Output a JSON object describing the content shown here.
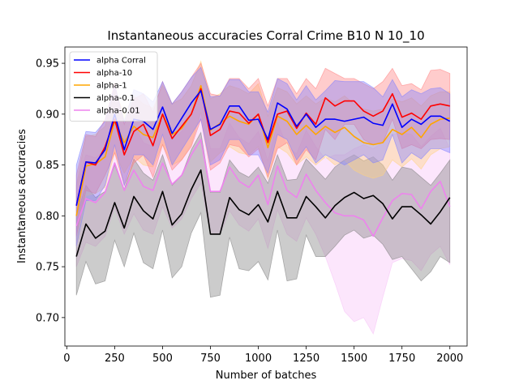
{
  "chart_data": {
    "type": "line",
    "title": "Instantaneous accuracies Corral Crime B10 N 10_10",
    "xlabel": "Number of batches",
    "ylabel": "Instantaneous accuracies",
    "xlim": [
      -10,
      2090
    ],
    "ylim": [
      0.672,
      0.966
    ],
    "xticks": [
      0,
      250,
      500,
      750,
      1000,
      1250,
      1500,
      1750,
      2000
    ],
    "yticks": [
      0.7,
      0.75,
      0.8,
      0.85,
      0.9,
      0.95
    ],
    "grid": false,
    "legend_position": "upper-left",
    "x": [
      50,
      100,
      150,
      200,
      250,
      300,
      350,
      400,
      450,
      500,
      550,
      600,
      650,
      700,
      750,
      800,
      850,
      900,
      950,
      1000,
      1050,
      1100,
      1150,
      1200,
      1250,
      1300,
      1350,
      1400,
      1450,
      1500,
      1550,
      1600,
      1650,
      1700,
      1750,
      1800,
      1850,
      1900,
      1950,
      2000
    ],
    "series": [
      {
        "name": "alpha Corral",
        "color": "#0000ff",
        "band_color": "#8080ff",
        "values": [
          0.81,
          0.853,
          0.852,
          0.865,
          0.9,
          0.865,
          0.895,
          0.893,
          0.885,
          0.907,
          0.881,
          0.896,
          0.911,
          0.923,
          0.885,
          0.89,
          0.908,
          0.908,
          0.894,
          0.895,
          0.875,
          0.911,
          0.905,
          0.888,
          0.9,
          0.887,
          0.895,
          0.895,
          0.893,
          0.895,
          0.897,
          0.891,
          0.889,
          0.91,
          0.887,
          0.895,
          0.89,
          0.898,
          0.898,
          0.893
        ],
        "upper": [
          0.85,
          0.883,
          0.882,
          0.893,
          0.928,
          0.893,
          0.924,
          0.92,
          0.912,
          0.932,
          0.91,
          0.922,
          0.936,
          0.946,
          0.917,
          0.918,
          0.934,
          0.934,
          0.922,
          0.922,
          0.902,
          0.935,
          0.93,
          0.914,
          0.928,
          0.914,
          0.923,
          0.933,
          0.932,
          0.932,
          0.932,
          0.926,
          0.917,
          0.934,
          0.917,
          0.924,
          0.92,
          0.925,
          0.926,
          0.92
        ],
        "lower": [
          0.77,
          0.815,
          0.815,
          0.83,
          0.87,
          0.83,
          0.86,
          0.86,
          0.85,
          0.88,
          0.85,
          0.865,
          0.88,
          0.895,
          0.85,
          0.855,
          0.875,
          0.875,
          0.86,
          0.86,
          0.842,
          0.88,
          0.875,
          0.855,
          0.868,
          0.852,
          0.86,
          0.855,
          0.85,
          0.855,
          0.86,
          0.852,
          0.855,
          0.88,
          0.852,
          0.862,
          0.856,
          0.866,
          0.866,
          0.862
        ]
      },
      {
        "name": "alpha-10",
        "color": "#ff0000",
        "band_color": "#ff8080",
        "values": [
          0.81,
          0.853,
          0.85,
          0.868,
          0.895,
          0.86,
          0.883,
          0.89,
          0.869,
          0.9,
          0.876,
          0.888,
          0.9,
          0.925,
          0.879,
          0.885,
          0.903,
          0.901,
          0.891,
          0.9,
          0.872,
          0.9,
          0.903,
          0.886,
          0.901,
          0.89,
          0.916,
          0.908,
          0.913,
          0.913,
          0.903,
          0.898,
          0.903,
          0.92,
          0.897,
          0.901,
          0.895,
          0.908,
          0.91,
          0.908
        ],
        "upper": [
          0.84,
          0.88,
          0.878,
          0.895,
          0.93,
          0.89,
          0.915,
          0.92,
          0.902,
          0.932,
          0.91,
          0.922,
          0.936,
          0.95,
          0.92,
          0.918,
          0.935,
          0.935,
          0.925,
          0.935,
          0.908,
          0.935,
          0.935,
          0.92,
          0.935,
          0.925,
          0.945,
          0.94,
          0.935,
          0.935,
          0.93,
          0.925,
          0.932,
          0.945,
          0.928,
          0.93,
          0.924,
          0.943,
          0.944,
          0.94
        ],
        "lower": [
          0.78,
          0.825,
          0.822,
          0.84,
          0.862,
          0.83,
          0.852,
          0.86,
          0.838,
          0.87,
          0.845,
          0.855,
          0.868,
          0.895,
          0.845,
          0.852,
          0.87,
          0.868,
          0.858,
          0.866,
          0.838,
          0.866,
          0.872,
          0.85,
          0.865,
          0.855,
          0.885,
          0.875,
          0.89,
          0.89,
          0.875,
          0.87,
          0.872,
          0.895,
          0.866,
          0.87,
          0.866,
          0.875,
          0.876,
          0.875
        ]
      },
      {
        "name": "alpha-1",
        "color": "#ffa500",
        "band_color": "#ffd280",
        "values": [
          0.8,
          0.849,
          0.851,
          0.858,
          0.893,
          0.872,
          0.888,
          0.88,
          0.877,
          0.9,
          0.88,
          0.886,
          0.9,
          0.928,
          0.884,
          0.891,
          0.898,
          0.893,
          0.89,
          0.9,
          0.867,
          0.898,
          0.893,
          0.88,
          0.889,
          0.88,
          0.888,
          0.882,
          0.887,
          0.878,
          0.872,
          0.87,
          0.872,
          0.885,
          0.88,
          0.887,
          0.877,
          0.89,
          0.895,
          0.896
        ],
        "upper": [
          0.83,
          0.878,
          0.88,
          0.888,
          0.924,
          0.9,
          0.918,
          0.91,
          0.906,
          0.928,
          0.91,
          0.915,
          0.928,
          0.952,
          0.915,
          0.92,
          0.928,
          0.925,
          0.92,
          0.93,
          0.898,
          0.926,
          0.922,
          0.91,
          0.918,
          0.91,
          0.916,
          0.912,
          0.918,
          0.91,
          0.905,
          0.903,
          0.905,
          0.915,
          0.912,
          0.916,
          0.908,
          0.918,
          0.922,
          0.922
        ],
        "lower": [
          0.77,
          0.82,
          0.822,
          0.828,
          0.862,
          0.842,
          0.858,
          0.85,
          0.848,
          0.87,
          0.85,
          0.855,
          0.87,
          0.902,
          0.853,
          0.862,
          0.868,
          0.862,
          0.86,
          0.868,
          0.836,
          0.868,
          0.862,
          0.85,
          0.858,
          0.85,
          0.858,
          0.85,
          0.855,
          0.845,
          0.84,
          0.837,
          0.84,
          0.855,
          0.848,
          0.856,
          0.846,
          0.86,
          0.866,
          0.868
        ]
      },
      {
        "name": "alpha-0.1",
        "color": "#000000",
        "band_color": "#808080",
        "values": [
          0.76,
          0.792,
          0.778,
          0.785,
          0.813,
          0.788,
          0.819,
          0.805,
          0.797,
          0.824,
          0.791,
          0.802,
          0.826,
          0.845,
          0.782,
          0.782,
          0.818,
          0.806,
          0.801,
          0.811,
          0.794,
          0.824,
          0.798,
          0.798,
          0.819,
          0.809,
          0.798,
          0.81,
          0.818,
          0.823,
          0.817,
          0.82,
          0.812,
          0.797,
          0.809,
          0.809,
          0.801,
          0.792,
          0.804,
          0.818
        ],
        "upper": [
          0.8,
          0.83,
          0.818,
          0.824,
          0.85,
          0.826,
          0.856,
          0.842,
          0.835,
          0.86,
          0.83,
          0.84,
          0.865,
          0.882,
          0.823,
          0.823,
          0.855,
          0.843,
          0.838,
          0.848,
          0.832,
          0.86,
          0.835,
          0.836,
          0.856,
          0.846,
          0.836,
          0.848,
          0.855,
          0.86,
          0.854,
          0.858,
          0.85,
          0.835,
          0.848,
          0.846,
          0.838,
          0.83,
          0.842,
          0.855
        ],
        "lower": [
          0.722,
          0.755,
          0.733,
          0.736,
          0.776,
          0.75,
          0.783,
          0.754,
          0.748,
          0.786,
          0.739,
          0.75,
          0.783,
          0.803,
          0.72,
          0.722,
          0.779,
          0.748,
          0.746,
          0.755,
          0.737,
          0.786,
          0.736,
          0.738,
          0.781,
          0.76,
          0.76,
          0.77,
          0.781,
          0.786,
          0.778,
          0.781,
          0.772,
          0.757,
          0.76,
          0.748,
          0.736,
          0.745,
          0.76,
          0.754
        ]
      },
      {
        "name": "alpha-0.01",
        "color": "#ee82ee",
        "band_color": "#f7c1f7",
        "values": [
          0.79,
          0.817,
          0.813,
          0.823,
          0.852,
          0.825,
          0.845,
          0.829,
          0.825,
          0.852,
          0.831,
          0.84,
          0.86,
          0.875,
          0.824,
          0.824,
          0.848,
          0.834,
          0.828,
          0.84,
          0.811,
          0.849,
          0.825,
          0.818,
          0.841,
          0.825,
          0.813,
          0.803,
          0.8,
          0.8,
          0.796,
          0.78,
          0.798,
          0.815,
          0.822,
          0.821,
          0.807,
          0.824,
          0.834,
          0.809
        ],
        "upper": [
          0.83,
          0.86,
          0.857,
          0.866,
          0.896,
          0.868,
          0.889,
          0.872,
          0.868,
          0.895,
          0.874,
          0.883,
          0.903,
          0.918,
          0.866,
          0.866,
          0.891,
          0.877,
          0.871,
          0.883,
          0.854,
          0.892,
          0.868,
          0.861,
          0.884,
          0.868,
          0.856,
          0.86,
          0.86,
          0.866,
          0.87,
          0.866,
          0.872,
          0.88,
          0.882,
          0.88,
          0.868,
          0.878,
          0.886,
          0.866
        ],
        "lower": [
          0.75,
          0.774,
          0.77,
          0.78,
          0.808,
          0.782,
          0.802,
          0.786,
          0.782,
          0.809,
          0.788,
          0.797,
          0.817,
          0.832,
          0.782,
          0.782,
          0.805,
          0.791,
          0.785,
          0.797,
          0.768,
          0.806,
          0.782,
          0.775,
          0.798,
          0.782,
          0.76,
          0.734,
          0.706,
          0.696,
          0.7,
          0.684,
          0.72,
          0.754,
          0.758,
          0.756,
          0.746,
          0.762,
          0.77,
          0.752
        ]
      }
    ]
  }
}
